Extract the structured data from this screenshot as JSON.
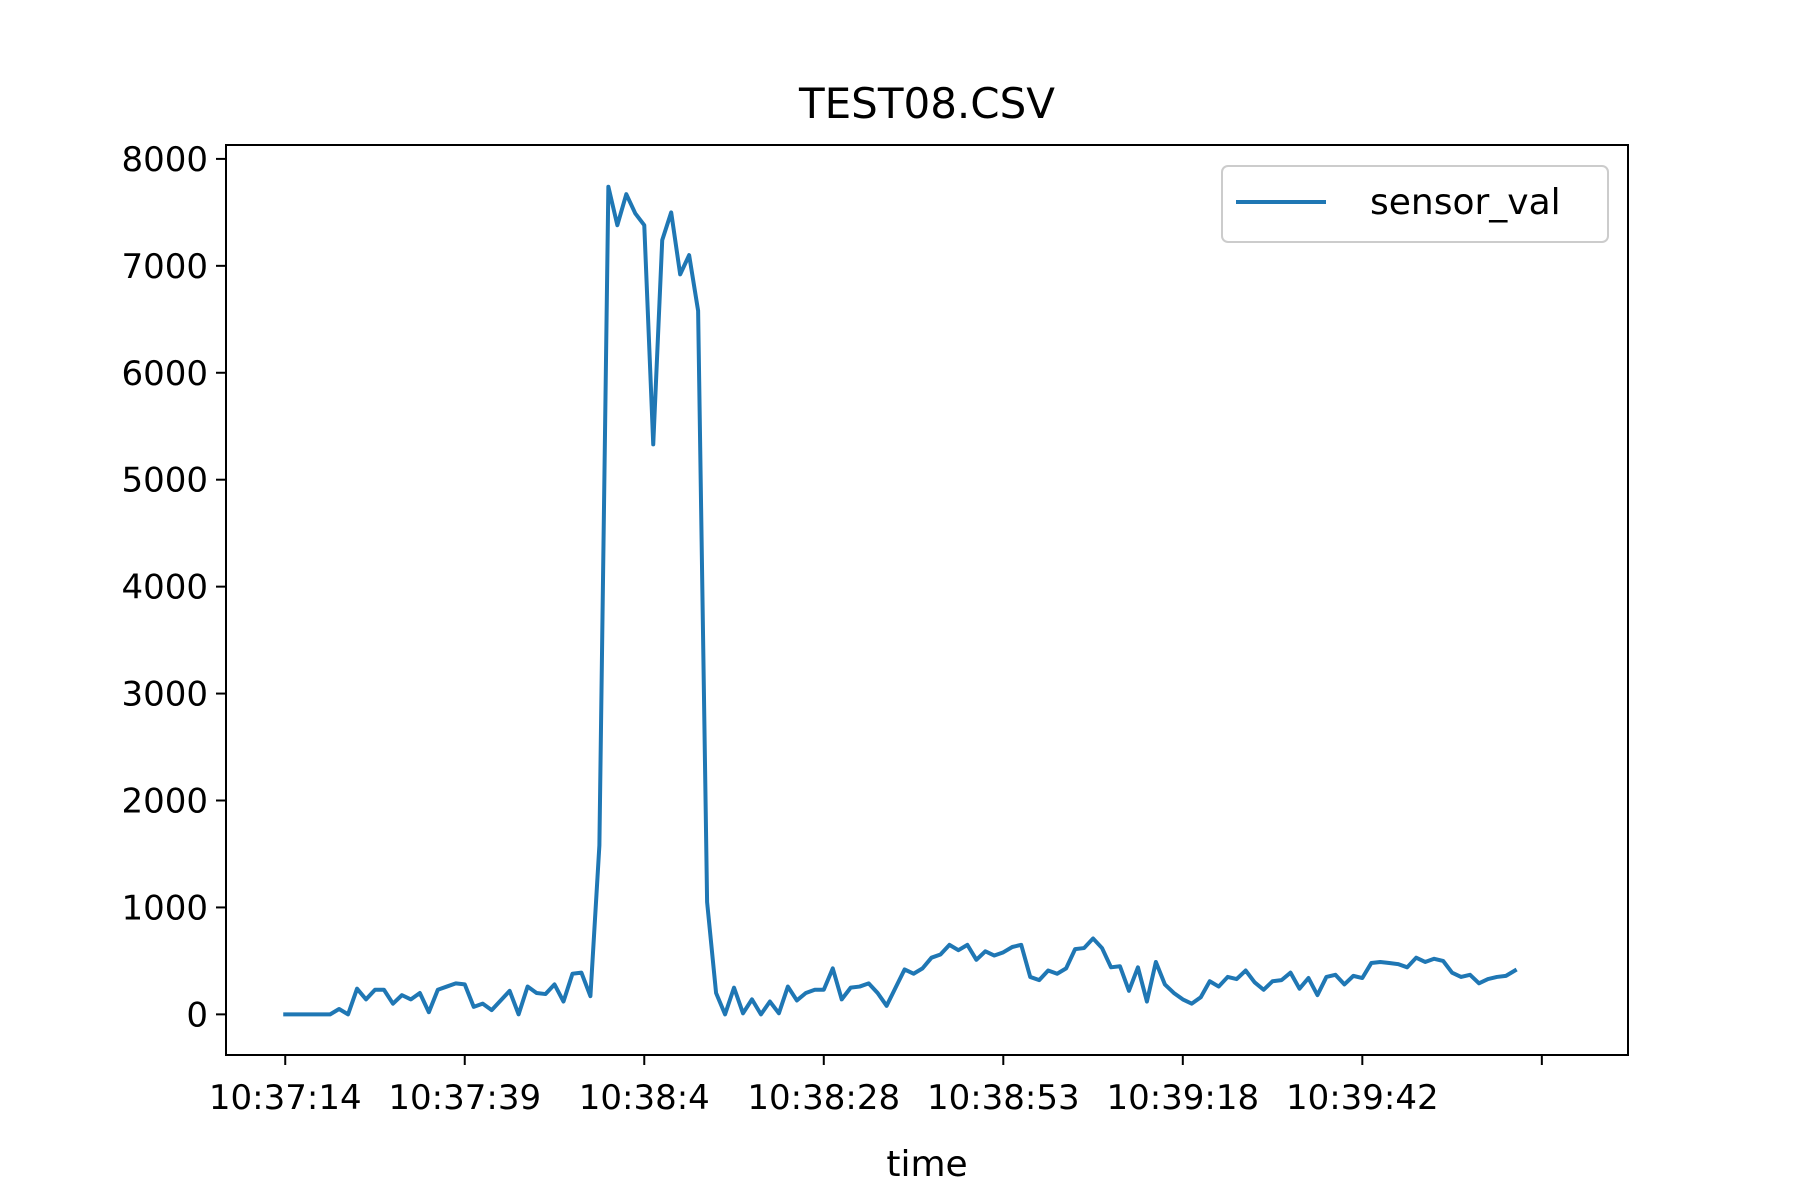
{
  "chart_data": {
    "type": "line",
    "title": "TEST08.CSV",
    "xlabel": "time",
    "ylabel": "",
    "xlim": [
      -6.6,
      149.6
    ],
    "ylim": [
      -380,
      8130
    ],
    "grid": false,
    "legend_position": "top-right",
    "x_tick_positions": [
      0,
      20,
      40,
      60,
      80,
      100,
      120,
      140
    ],
    "x_tick_labels": [
      "10:37:14",
      "10:37:39",
      "10:38:4",
      "10:38:28",
      "10:38:53",
      "10:39:18",
      "10:39:42",
      ""
    ],
    "y_ticks": [
      0,
      1000,
      2000,
      3000,
      4000,
      5000,
      6000,
      7000,
      8000
    ],
    "colors": {
      "series": "#1f77b4"
    },
    "series": [
      {
        "name": "sensor_val",
        "values": [
          0,
          0,
          0,
          0,
          0,
          0,
          50,
          0,
          240,
          140,
          230,
          230,
          100,
          180,
          140,
          200,
          20,
          230,
          260,
          290,
          280,
          70,
          100,
          40,
          130,
          220,
          0,
          260,
          200,
          190,
          280,
          120,
          380,
          390,
          170,
          1580,
          7740,
          7380,
          7670,
          7490,
          7380,
          5330,
          7240,
          7500,
          6920,
          7100,
          6580,
          1050,
          200,
          0,
          250,
          10,
          140,
          0,
          120,
          10,
          260,
          130,
          200,
          230,
          230,
          430,
          140,
          250,
          260,
          290,
          200,
          80,
          250,
          420,
          380,
          430,
          530,
          560,
          650,
          600,
          650,
          510,
          590,
          550,
          580,
          630,
          650,
          350,
          320,
          410,
          380,
          430,
          610,
          620,
          710,
          620,
          440,
          450,
          220,
          440,
          120,
          490,
          280,
          200,
          140,
          100,
          160,
          310,
          260,
          350,
          330,
          410,
          300,
          230,
          310,
          320,
          390,
          240,
          340,
          180,
          350,
          370,
          280,
          360,
          340,
          480,
          490,
          480,
          470,
          440,
          530,
          490,
          520,
          500,
          390,
          350,
          370,
          290,
          330,
          350,
          360,
          410
        ]
      }
    ]
  }
}
